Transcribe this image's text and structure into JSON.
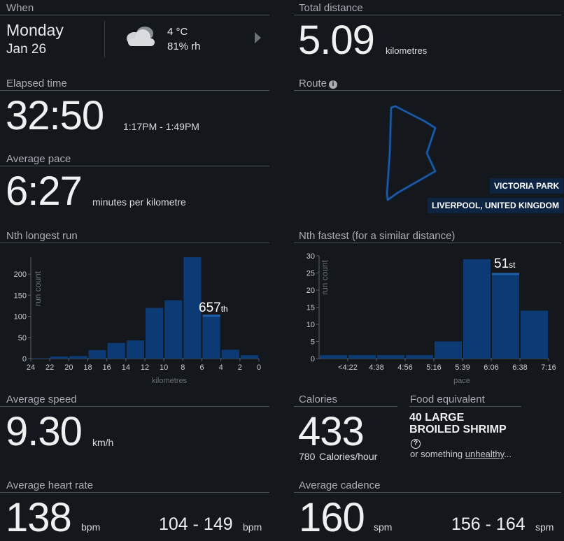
{
  "when": {
    "header": "When",
    "day": "Monday",
    "date": "Jan 26",
    "temperature": "4 °C",
    "humidity": "81% rh",
    "weather_icon": "cloud-icon",
    "next_icon": "chevron-right-icon"
  },
  "total_distance": {
    "header": "Total distance",
    "value": "5.09",
    "unit": "kilometres"
  },
  "elapsed_time": {
    "header": "Elapsed time",
    "value": "32:50",
    "range": "1:17PM - 1:49PM"
  },
  "route": {
    "header": "Route",
    "info_icon": "info-icon",
    "location_1": "VICTORIA PARK",
    "location_2": "LIVERPOOL, UNITED KINGDOM",
    "color": "#1f5fa8"
  },
  "average_pace": {
    "header": "Average pace",
    "value": "6:27",
    "unit": "minutes per kilometre"
  },
  "nth_longest": {
    "header": "Nth longest run",
    "rank_number": "657",
    "rank_suffix": "th"
  },
  "nth_fastest": {
    "header": "Nth fastest (for a similar distance)",
    "rank_number": "51",
    "rank_suffix": "st"
  },
  "average_speed": {
    "header": "Average speed",
    "value": "9.30",
    "unit": "km/h"
  },
  "calories": {
    "header": "Calories",
    "value": "433",
    "rate_value": "780",
    "rate_unit": "Calories/hour"
  },
  "food": {
    "header": "Food equivalent",
    "line1": "40 LARGE",
    "line2": "BROILED SHRIMP",
    "help_icon": "question-circle-icon",
    "prefix": "or something ",
    "link": "unhealthy",
    "suffix": "..."
  },
  "heart_rate": {
    "header": "Average heart rate",
    "value": "138",
    "unit": "bpm",
    "range": "104 - 149",
    "range_unit": "bpm"
  },
  "cadence": {
    "header": "Average cadence",
    "value": "160",
    "unit": "spm",
    "range": "156 - 164",
    "range_unit": "spm"
  },
  "chart_data": [
    {
      "type": "bar",
      "xlabel": "kilometres",
      "ylabel": "run count",
      "ylim": [
        0,
        240
      ],
      "yticks": [
        0,
        50,
        100,
        150,
        200
      ],
      "xticks": [
        "24",
        "22",
        "20",
        "18",
        "16",
        "14",
        "12",
        "10",
        "8",
        "6",
        "4",
        "2",
        "0"
      ],
      "bin_edges": [
        24,
        22,
        20,
        18,
        16,
        14,
        12,
        10,
        8,
        6,
        4,
        2,
        0
      ],
      "values": [
        1,
        5,
        6,
        20,
        37,
        43,
        120,
        138,
        240,
        104,
        21,
        8
      ],
      "highlight_bin": 9,
      "grid": false,
      "bar_color": "#0b3a74",
      "highlight_color": "#1f5fa8"
    },
    {
      "type": "bar",
      "xlabel": "pace",
      "ylabel": "run count",
      "ylim": [
        0,
        30
      ],
      "yticks": [
        0,
        5,
        10,
        15,
        20,
        25,
        30
      ],
      "xticks": [
        "<4:22",
        "4:38",
        "4:56",
        "5:16",
        "5:39",
        "6:06",
        "6:38",
        "7:16"
      ],
      "values": [
        1,
        1,
        1,
        1,
        5,
        29,
        25,
        14
      ],
      "highlight_bin": 6,
      "grid": false,
      "bar_color": "#0b3a74",
      "highlight_color": "#1f5fa8"
    }
  ]
}
